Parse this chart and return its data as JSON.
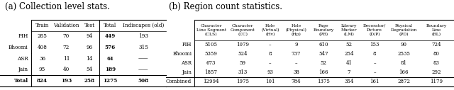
{
  "title_a": "(a) Collection level stats.",
  "title_b": "(b) Region count statistics.",
  "table_a": {
    "col_headers": [
      "",
      "Train",
      "Validation",
      "Test",
      "Total",
      "Indiscapes (old)"
    ],
    "rows": [
      [
        "PIH",
        "285",
        "70",
        "94",
        "449",
        "193"
      ],
      [
        "Bhoomi",
        "408",
        "72",
        "96",
        "576",
        "315"
      ],
      [
        "ASR",
        "36",
        "11",
        "14",
        "61",
        "——"
      ],
      [
        "Jain",
        "95",
        "40",
        "54",
        "189",
        "——"
      ],
      [
        "Total",
        "824",
        "193",
        "258",
        "1275",
        "508"
      ]
    ],
    "bold_total_col": 4,
    "total_row_idx": 4
  },
  "table_b": {
    "col_headers": [
      "",
      "Character\nLine Segment\n(CLS)",
      "Character\nComponent\n(CC)",
      "Hole\n(Virtual)\n(Hv)",
      "Hole\n(Physical)\n(Hp)",
      "Page\nBoundary\n(PB)",
      "Library\nMarker\n(LM)",
      "Decorator/\nPicture\n(D/P)",
      "Physical\nDegradation\n(PD)",
      "Boundary\nLine\n(BL)"
    ],
    "rows": [
      [
        "PIH",
        "5105",
        "1079",
        "–",
        "9",
        "610",
        "52",
        "153",
        "90",
        "724"
      ],
      [
        "Bhoomi",
        "5359",
        "524",
        "8",
        "737",
        "547",
        "254",
        "8",
        "2535",
        "80"
      ],
      [
        "ASR",
        "673",
        "59",
        "–",
        "–",
        "52",
        "41",
        "–",
        "81",
        "83"
      ],
      [
        "Jain",
        "1857",
        "313",
        "93",
        "38",
        "166",
        "7",
        "–",
        "166",
        "292"
      ],
      [
        "Combined",
        "12994",
        "1975",
        "101",
        "784",
        "1375",
        "354",
        "161",
        "2872",
        "1179"
      ]
    ],
    "total_row_idx": 4
  },
  "font_family": "serif",
  "bg_color": "#ffffff",
  "line_color": "#000000"
}
